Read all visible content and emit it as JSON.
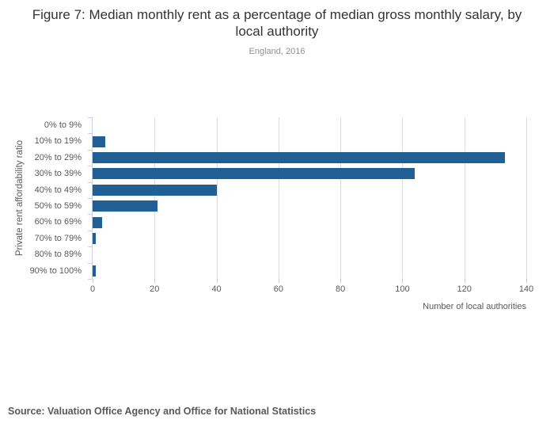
{
  "chart_data": {
    "type": "bar",
    "orientation": "horizontal",
    "title": "Figure 7: Median monthly rent as a percentage of median gross monthly salary, by local authority",
    "subtitle": "England, 2016",
    "categories": [
      "0% to 9%",
      "10% to 19%",
      "20% to 29%",
      "30% to 39%",
      "40% to 49%",
      "50% to 59%",
      "60% to 69%",
      "70% to 79%",
      "80% to 89%",
      "90% to 100%"
    ],
    "values": [
      0,
      4,
      133,
      104,
      40,
      21,
      3,
      1,
      0,
      1
    ],
    "xlabel": "Number of local authorities",
    "ylabel": "Private rent affordability ratio",
    "xlim": [
      0,
      140
    ],
    "xticks": [
      0,
      20,
      40,
      60,
      80,
      100,
      120,
      140
    ],
    "grid": true,
    "legend": false,
    "bar_color": "#206095",
    "gridline_color": "#dcdcdc",
    "axis_color": "#c8d1e5",
    "text_color": "#595959"
  },
  "source": "Source: Valuation Office Agency and Office for National Statistics"
}
